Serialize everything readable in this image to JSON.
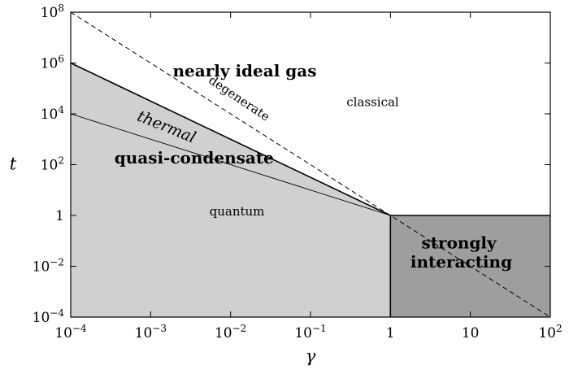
{
  "chart_data": {
    "type": "area",
    "xlabel": "γ",
    "ylabel": "t",
    "xscale": "log",
    "yscale": "log",
    "xlim": [
      0.0001,
      100
    ],
    "ylim": [
      0.0001,
      100000000
    ],
    "grid": false,
    "x_ticks": [
      {
        "value": 0.0001,
        "base": "10",
        "exp": "−4"
      },
      {
        "value": 0.001,
        "base": "10",
        "exp": "−3"
      },
      {
        "value": 0.01,
        "base": "10",
        "exp": "−2"
      },
      {
        "value": 0.1,
        "base": "10",
        "exp": "−1"
      },
      {
        "value": 1,
        "base": "1",
        "exp": ""
      },
      {
        "value": 10,
        "base": "10",
        "exp": ""
      },
      {
        "value": 100,
        "base": "10",
        "exp": "2"
      }
    ],
    "y_ticks": [
      {
        "value": 0.0001,
        "base": "10",
        "exp": "−4"
      },
      {
        "value": 0.01,
        "base": "10",
        "exp": "−2"
      },
      {
        "value": 1,
        "base": "1",
        "exp": ""
      },
      {
        "value": 100,
        "base": "10",
        "exp": "2"
      },
      {
        "value": 10000,
        "base": "10",
        "exp": "4"
      },
      {
        "value": 1000000,
        "base": "10",
        "exp": "6"
      },
      {
        "value": 100000000,
        "base": "10",
        "exp": "8"
      }
    ],
    "regions": [
      {
        "color": "#d0d0d0",
        "points": [
          [
            0.0001,
            0.0001
          ],
          [
            0.0001,
            1000000
          ],
          [
            1,
            1
          ],
          [
            1,
            0.0001
          ]
        ]
      },
      {
        "color": "#9e9e9e",
        "points": [
          [
            1,
            0.0001
          ],
          [
            1,
            1
          ],
          [
            100,
            1
          ],
          [
            100,
            0.0001
          ]
        ]
      }
    ],
    "lines": [
      {
        "style": "solid-thick",
        "points": [
          [
            0.0001,
            1000000
          ],
          [
            1,
            1
          ]
        ]
      },
      {
        "style": "solid-thin",
        "points": [
          [
            0.0001,
            10000
          ],
          [
            1,
            1
          ]
        ]
      },
      {
        "style": "dashed",
        "points": [
          [
            0.0001,
            100000000
          ],
          [
            100,
            0.0001
          ]
        ]
      },
      {
        "style": "solid-thick",
        "points": [
          [
            1,
            0.0001
          ],
          [
            1,
            1
          ],
          [
            100,
            1
          ]
        ]
      }
    ],
    "annotations": [
      {
        "text": "nearly ideal gas",
        "x": 0.015,
        "y": 300000,
        "style": "bold",
        "rotate": 0
      },
      {
        "text": "degenerate",
        "x": 0.012,
        "y": 30000,
        "style": "normal",
        "rotate": 34
      },
      {
        "text": "classical",
        "x": 0.6,
        "y": 20000,
        "style": "normal",
        "rotate": 0
      },
      {
        "text": "thermal",
        "x": 0.0015,
        "y": 2000,
        "style": "italic",
        "rotate": 22
      },
      {
        "text": "quasi-condensate",
        "x": 0.0035,
        "y": 110,
        "style": "bold",
        "rotate": 0
      },
      {
        "text": "quantum",
        "x": 0.012,
        "y": 1,
        "style": "normal",
        "rotate": 0
      },
      {
        "text": "strongly",
        "x": 7.2,
        "y": 0.05,
        "style": "bold",
        "rotate": 0
      },
      {
        "text": "interacting",
        "x": 7.7,
        "y": 0.009,
        "style": "bold",
        "rotate": 0
      }
    ]
  }
}
